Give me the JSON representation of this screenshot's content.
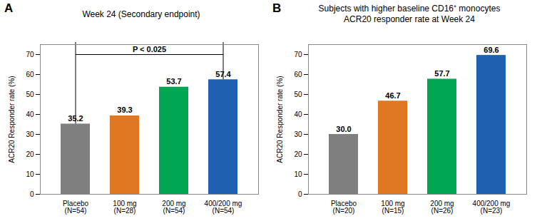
{
  "chart_data": [
    {
      "type": "bar",
      "panel": "A",
      "title": "Week 24 (Secondary endpoint)",
      "categories": [
        "Placebo\n(N=54)",
        "100 mg\n(N=28)",
        "200 mg\n(N=54)",
        "400/200 mg\n(N=54)"
      ],
      "values": [
        35.2,
        39.3,
        53.7,
        57.4
      ],
      "colors": [
        "#7f7f7f",
        "#e07722",
        "#00a651",
        "#2060b0"
      ],
      "ylabel": "ACR20 Responder rate (%)",
      "ylim": [
        0,
        75
      ],
      "yticks": [
        0,
        10,
        20,
        30,
        40,
        50,
        60,
        70
      ],
      "data_labels": true,
      "annotations": [
        {
          "text": "P < 0.025",
          "from": "Placebo\n(N=54)",
          "to": "400/200 mg\n(N=54)",
          "y": 70
        }
      ]
    },
    {
      "type": "bar",
      "panel": "B",
      "title": "Subjects with higher baseline CD16⁺ monocytes\nACR20 responder rate at Week 24",
      "categories": [
        "Placebo\n(N=20)",
        "100 mg\n(N=15)",
        "200 mg\n(N=26)",
        "400/200 mg\n(N=23)"
      ],
      "values": [
        30.0,
        46.7,
        57.7,
        69.6
      ],
      "value_labels": [
        "30.0",
        "46.7",
        "57.7",
        "69.6"
      ],
      "colors": [
        "#7f7f7f",
        "#e07722",
        "#00a651",
        "#2060b0"
      ],
      "ylabel": "ACR20 Responder rate (%)",
      "ylim": [
        0,
        75
      ],
      "yticks": [
        0,
        10,
        20,
        30,
        40,
        50,
        60,
        70
      ],
      "data_labels": true
    }
  ]
}
